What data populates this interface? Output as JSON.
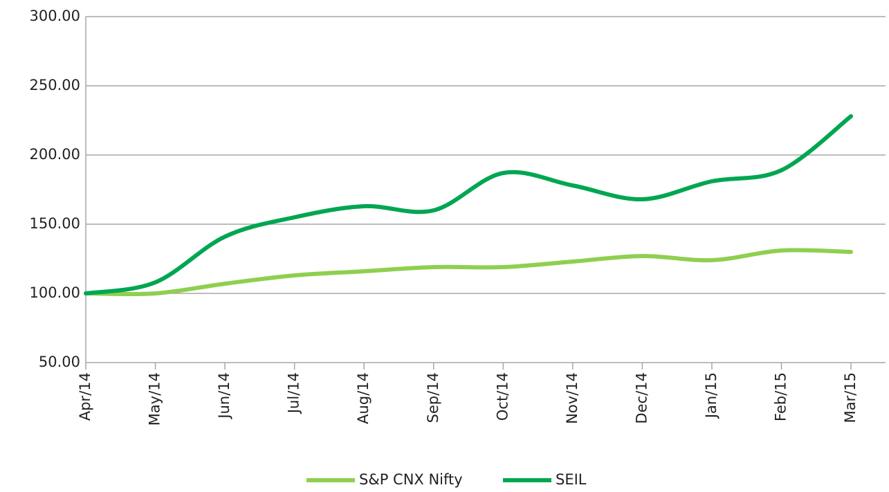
{
  "chart_data": {
    "type": "line",
    "categories": [
      "Apr/14",
      "May/14",
      "Jun/14",
      "Jul/14",
      "Aug/14",
      "Sep/14",
      "Oct/14",
      "Nov/14",
      "Dec/14",
      "Jan/15",
      "Feb/15",
      "Mar/15"
    ],
    "series": [
      {
        "name": "S&P CNX Nifty",
        "color": "#8fcf4f",
        "values": [
          100,
          100,
          107,
          113,
          116,
          119,
          119,
          123,
          127,
          124,
          131,
          130
        ]
      },
      {
        "name": "SEIL",
        "color": "#00a651",
        "values": [
          100,
          108,
          141,
          155,
          163,
          160,
          187,
          178,
          168,
          181,
          189,
          228
        ]
      }
    ],
    "ylim": [
      50,
      300
    ],
    "yticks": [
      {
        "value": 50,
        "label": "50.00"
      },
      {
        "value": 100,
        "label": "100.00"
      },
      {
        "value": 150,
        "label": "150.00"
      },
      {
        "value": 200,
        "label": "200.00"
      },
      {
        "value": 250,
        "label": "250.00"
      },
      {
        "value": 300,
        "label": "300.00"
      }
    ],
    "grid": true,
    "legend": "bottom"
  }
}
